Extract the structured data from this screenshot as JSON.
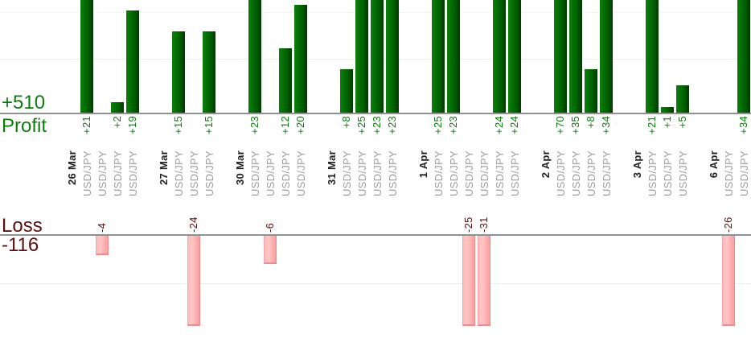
{
  "chart_data": {
    "type": "bar",
    "description": "Per-trade profit (top, green) and loss (bottom, pink) bars grouped by date",
    "profit_summary": {
      "label": "Profit",
      "total": "+510"
    },
    "loss_summary": {
      "label": "Loss",
      "total": "-116"
    },
    "grid": "on",
    "legend": "none",
    "groups": [
      {
        "date": "26 Mar",
        "trades": [
          {
            "pair": "USD/JPY",
            "value": 21
          },
          {
            "pair": "USD/JPY",
            "value": -4
          },
          {
            "pair": "USD/JPY",
            "value": 2
          },
          {
            "pair": "USD/JPY",
            "value": 19
          }
        ]
      },
      {
        "date": "27 Mar",
        "trades": [
          {
            "pair": "USD/JPY",
            "value": 15
          },
          {
            "pair": "USD/JPY",
            "value": -24
          },
          {
            "pair": "USD/JPY",
            "value": 15
          }
        ]
      },
      {
        "date": "30 Mar",
        "trades": [
          {
            "pair": "USD/JPY",
            "value": 23
          },
          {
            "pair": "USD/JPY",
            "value": -6
          },
          {
            "pair": "USD/JPY",
            "value": 12
          },
          {
            "pair": "USD/JPY",
            "value": 20
          }
        ]
      },
      {
        "date": "31 Mar",
        "trades": [
          {
            "pair": "USD/JPY",
            "value": 8
          },
          {
            "pair": "USD/JPY",
            "value": 25
          },
          {
            "pair": "USD/JPY",
            "value": 23
          },
          {
            "pair": "USD/JPY",
            "value": 23
          }
        ]
      },
      {
        "date": "1 Apr",
        "trades": [
          {
            "pair": "USD/JPY",
            "value": 25
          },
          {
            "pair": "USD/JPY",
            "value": 23
          },
          {
            "pair": "USD/JPY",
            "value": -25
          },
          {
            "pair": "USD/JPY",
            "value": -31
          },
          {
            "pair": "USD/JPY",
            "value": 24
          },
          {
            "pair": "USD/JPY",
            "value": 24
          }
        ]
      },
      {
        "date": "2 Apr",
        "trades": [
          {
            "pair": "USD/JPY",
            "value": 70
          },
          {
            "pair": "USD/JPY",
            "value": 35
          },
          {
            "pair": "USD/JPY",
            "value": 8
          },
          {
            "pair": "USD/JPY",
            "value": 34
          }
        ]
      },
      {
        "date": "3 Apr",
        "trades": [
          {
            "pair": "USD/JPY",
            "value": 21
          },
          {
            "pair": "USD/JPY",
            "value": 1
          },
          {
            "pair": "USD/JPY",
            "value": 5
          }
        ]
      },
      {
        "date": "6 Apr",
        "trades": [
          {
            "pair": "USD/JPY",
            "value": -26
          },
          {
            "pair": "USD/JPY",
            "value": 34
          }
        ]
      }
    ]
  },
  "colors": {
    "profit_green": "#0b7d0b",
    "profit_bar_light": "#0c7f0c",
    "profit_bar_dark": "#003a00",
    "loss_text": "#5b0f0f",
    "loss_bar_fill": "#ffc6c6",
    "loss_bar_edge": "#ee8c8c",
    "date_text": "#222222",
    "pair_text": "#9c9c9c",
    "axis_line": "#919191",
    "gridline": "#ededed"
  }
}
